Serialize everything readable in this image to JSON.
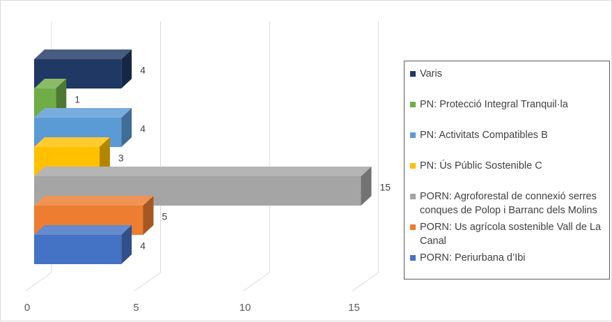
{
  "chart_data": {
    "type": "bar",
    "orientation": "horizontal",
    "style": "3d",
    "title": "",
    "xlabel": "",
    "ylabel": "",
    "xlim": [
      0,
      15
    ],
    "ticks": [
      "0",
      "5",
      "10",
      "15"
    ],
    "grid": true,
    "legend_position": "right",
    "bars": [
      {
        "category": "Varis",
        "value": 4,
        "label": "4",
        "color": "#1f3864"
      },
      {
        "category": "PN: Protecció Integral Tranquil·la",
        "value": 1,
        "label": "1",
        "color": "#70ad47"
      },
      {
        "category": "PN: Activitats Compatibles B",
        "value": 4,
        "label": "4",
        "color": "#5b9bd5"
      },
      {
        "category": "PN: Ús Públic Sostenible C",
        "value": 3,
        "label": "3",
        "color": "#ffc000"
      },
      {
        "category": "PORN: Agroforestal de connexió serres conques de Polop i Barranc dels Molins",
        "value": 15,
        "label": "15",
        "color": "#a5a5a5"
      },
      {
        "category": "PORN: Us agrícola sostenible Vall de La Canal",
        "value": 5,
        "label": "5",
        "color": "#ed7d31"
      },
      {
        "category": "PORN: Periurbana d’Ibi",
        "value": 4,
        "label": "4",
        "color": "#4472c4"
      }
    ]
  }
}
